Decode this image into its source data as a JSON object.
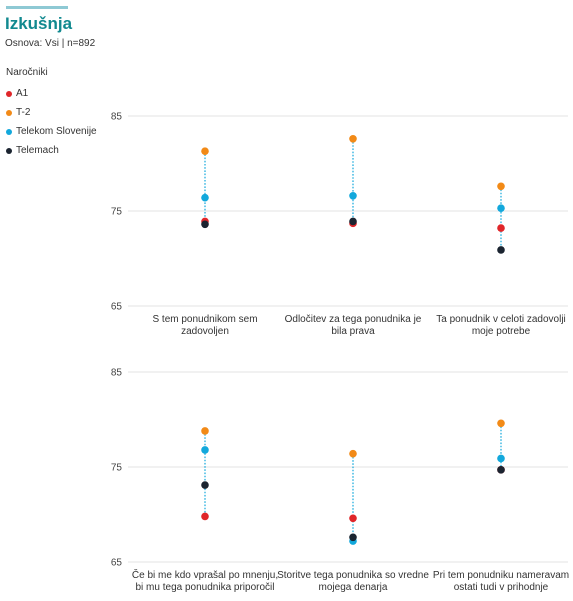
{
  "header": {
    "title": "Izkušnja",
    "subtitle": "Osnova: Vsi | n=892"
  },
  "legend": {
    "title": "Naročniki",
    "items": [
      {
        "label": "A1",
        "color": "#e0262a"
      },
      {
        "label": "T-2",
        "color": "#f28a17"
      },
      {
        "label": "Telekom Slovenije",
        "color": "#12a8dc"
      },
      {
        "label": "Telemach",
        "color": "#1b2430"
      }
    ]
  },
  "chart_data": [
    {
      "type": "scatter",
      "ylim": [
        65,
        85
      ],
      "yticks": [
        65,
        75,
        85
      ],
      "categories": [
        [
          "S tem ponudnikom sem",
          "zadovoljen"
        ],
        [
          "Odločitev za tega ponudnika je",
          "bila prava"
        ],
        [
          "Ta ponudnik v celoti zadovolji",
          "moje potrebe"
        ]
      ],
      "series": [
        {
          "name": "A1",
          "color": "#e0262a",
          "values": [
            73.9,
            73.7,
            73.2
          ]
        },
        {
          "name": "T-2",
          "color": "#f28a17",
          "values": [
            81.3,
            82.6,
            77.6
          ]
        },
        {
          "name": "Telekom Slovenije",
          "color": "#12a8dc",
          "values": [
            76.4,
            76.6,
            75.3
          ]
        },
        {
          "name": "Telemach",
          "color": "#1b2430",
          "values": [
            73.6,
            73.9,
            70.9
          ]
        }
      ]
    },
    {
      "type": "scatter",
      "ylim": [
        65,
        85
      ],
      "yticks": [
        65,
        75,
        85
      ],
      "categories": [
        [
          "Če bi me kdo vprašal po mnenju,",
          "bi mu tega ponudnika priporočil"
        ],
        [
          "Storitve tega ponudnika so vredne",
          "mojega denarja"
        ],
        [
          "Pri tem ponudniku nameravam",
          "ostati tudi v prihodnje"
        ]
      ],
      "series": [
        {
          "name": "A1",
          "color": "#e0262a",
          "values": [
            69.8,
            69.6,
            74.7
          ]
        },
        {
          "name": "T-2",
          "color": "#f28a17",
          "values": [
            78.8,
            76.4,
            79.6
          ]
        },
        {
          "name": "Telekom Slovenije",
          "color": "#12a8dc",
          "values": [
            76.8,
            67.2,
            75.9
          ]
        },
        {
          "name": "Telemach",
          "color": "#1b2430",
          "values": [
            73.1,
            67.6,
            74.7
          ]
        }
      ]
    }
  ]
}
